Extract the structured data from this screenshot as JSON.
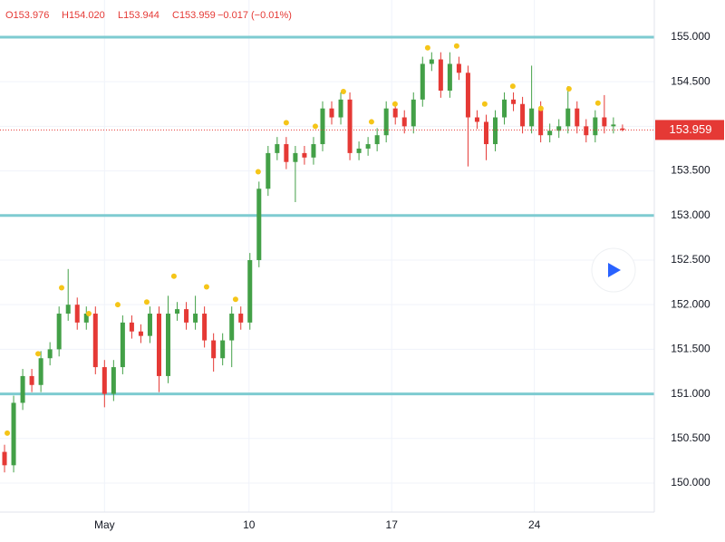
{
  "chart_data": {
    "type": "candlestick",
    "header": [
      "O153.976",
      "H154.020",
      "L153.944",
      "C153.959",
      "−0.017 (−0.01%)"
    ],
    "x": [
      0.5,
      1.5,
      2.5,
      3.5,
      4.5,
      5.5,
      6.5,
      7.5,
      8.5,
      9.5,
      10.5,
      11.5,
      12.5,
      13.5,
      14.5,
      15.5,
      16.5,
      17.5,
      18.5,
      19.5,
      20.5,
      21.5,
      22.5,
      23.5,
      24.5,
      25.5,
      26.5,
      27.5,
      28.5,
      29.5,
      30.5,
      31.5,
      32.5,
      33.5,
      34.5,
      35.5,
      36.5,
      37.5,
      38.5,
      39.5,
      40.5,
      41.5,
      42.5,
      43.5,
      44.5,
      45.5,
      46.5,
      47.5,
      48.5,
      49.5,
      50.5,
      51.5,
      52.5,
      53.5,
      54.5,
      55.5,
      56.5,
      57.5,
      58.5,
      59.5,
      60.5,
      61.5,
      62.5,
      63.5,
      64.5,
      65.5,
      66.5,
      67.5,
      68.5
    ],
    "open": [
      150.35,
      150.2,
      150.9,
      151.2,
      151.1,
      151.4,
      151.5,
      151.9,
      152.0,
      151.8,
      151.9,
      151.3,
      151.0,
      151.3,
      151.8,
      151.7,
      151.65,
      151.9,
      151.2,
      151.9,
      151.95,
      151.8,
      151.9,
      151.6,
      151.4,
      151.6,
      151.9,
      151.8,
      152.5,
      153.3,
      153.7,
      153.8,
      153.6,
      153.7,
      153.65,
      153.8,
      154.2,
      154.1,
      154.3,
      153.7,
      153.75,
      153.8,
      153.9,
      154.2,
      154.1,
      154.0,
      154.3,
      154.7,
      154.75,
      154.4,
      154.7,
      154.6,
      154.1,
      154.05,
      153.8,
      154.1,
      154.3,
      154.25,
      154.0,
      154.2,
      153.9,
      153.95,
      154.0,
      154.2,
      154.0,
      153.9,
      154.1,
      154.0,
      153.976
    ],
    "high": [
      150.43,
      150.98,
      151.28,
      151.28,
      151.48,
      151.58,
      151.98,
      152.4,
      152.08,
      151.98,
      151.98,
      151.38,
      151.38,
      151.88,
      151.88,
      151.78,
      151.98,
      151.98,
      152.1,
      152.03,
      152.03,
      152.1,
      151.98,
      151.68,
      151.68,
      151.98,
      151.98,
      152.58,
      153.38,
      153.78,
      153.88,
      153.88,
      153.78,
      153.78,
      153.88,
      154.28,
      154.28,
      154.38,
      154.38,
      153.83,
      153.88,
      153.98,
      154.28,
      154.28,
      154.18,
      154.38,
      154.78,
      154.83,
      154.83,
      154.83,
      154.78,
      154.68,
      154.18,
      154.13,
      154.18,
      154.38,
      154.38,
      154.33,
      154.68,
      154.28,
      154.03,
      154.08,
      154.45,
      154.28,
      154.08,
      154.18,
      154.35,
      154.1,
      154.02
    ],
    "low": [
      150.12,
      150.12,
      150.82,
      151.02,
      151.02,
      151.32,
      151.42,
      151.82,
      151.72,
      151.72,
      151.22,
      150.85,
      150.92,
      151.22,
      151.62,
      151.57,
      151.57,
      151.02,
      151.12,
      151.82,
      151.72,
      151.72,
      151.52,
      151.25,
      151.32,
      151.3,
      151.72,
      151.72,
      152.42,
      153.22,
      153.62,
      153.52,
      153.15,
      153.57,
      153.57,
      153.72,
      154.02,
      154.02,
      153.62,
      153.62,
      153.67,
      153.72,
      153.82,
      154.02,
      153.92,
      153.92,
      154.22,
      154.62,
      154.32,
      154.32,
      154.52,
      153.55,
      153.97,
      153.62,
      153.72,
      154.02,
      154.17,
      153.92,
      153.92,
      153.82,
      153.82,
      153.87,
      153.92,
      153.92,
      153.82,
      153.82,
      153.92,
      153.92,
      153.944
    ],
    "close": [
      150.2,
      150.9,
      151.2,
      151.1,
      151.4,
      151.5,
      151.9,
      152.0,
      151.8,
      151.9,
      151.3,
      151.0,
      151.3,
      151.8,
      151.7,
      151.65,
      151.9,
      151.2,
      151.9,
      151.95,
      151.8,
      151.9,
      151.6,
      151.4,
      151.6,
      151.9,
      151.8,
      152.5,
      153.3,
      153.7,
      153.8,
      153.6,
      153.7,
      153.65,
      153.8,
      154.2,
      154.1,
      154.3,
      153.7,
      153.75,
      153.8,
      153.9,
      154.2,
      154.1,
      154.0,
      154.3,
      154.7,
      154.75,
      154.4,
      154.7,
      154.6,
      154.1,
      154.05,
      153.8,
      154.1,
      154.3,
      154.25,
      154.0,
      154.2,
      153.9,
      153.95,
      154.0,
      154.2,
      154.0,
      153.9,
      154.1,
      154.0,
      154.02,
      153.959
    ],
    "up_color": "#43a047",
    "down_color": "#e53935",
    "markers": {
      "color": "#f5c518",
      "x": [
        0.8,
        4.19,
        6.78,
        9.77,
        12.96,
        16.15,
        19.14,
        22.73,
        25.92,
        28.41,
        31.5,
        34.7,
        37.79,
        40.88,
        43.47,
        47.06,
        50.25,
        53.34,
        56.43,
        59.52,
        62.61,
        65.8
      ],
      "y": [
        150.56,
        151.45,
        152.19,
        151.9,
        152.0,
        152.03,
        152.32,
        152.2,
        152.06,
        153.49,
        154.04,
        154.0,
        154.39,
        154.05,
        154.25,
        154.88,
        154.9,
        154.25,
        154.45,
        154.2,
        154.42,
        154.26
      ]
    },
    "levels": [
      155,
      153,
      151
    ],
    "level_color": "#7ecbd1",
    "last_price": 153.959,
    "xlim": [
      0,
      72
    ],
    "xticks": [
      {
        "value": 11.5,
        "label": "May"
      },
      {
        "value": 27.4,
        "label": "10"
      },
      {
        "value": 43.1,
        "label": "17"
      },
      {
        "value": 58.8,
        "label": "24"
      }
    ],
    "ylim": [
      149.675,
      155.416
    ],
    "yticks": [
      {
        "value": 150,
        "label": "150.000"
      },
      {
        "value": 150.5,
        "label": "150.500"
      },
      {
        "value": 151,
        "label": "151.000"
      },
      {
        "value": 151.5,
        "label": "151.500"
      },
      {
        "value": 152,
        "label": "152.000"
      },
      {
        "value": 152.5,
        "label": "152.500"
      },
      {
        "value": 153,
        "label": "153.000"
      },
      {
        "value": 153.5,
        "label": "153.500"
      },
      {
        "value": 154,
        "label": "154.000"
      },
      {
        "value": 154.5,
        "label": "154.500"
      },
      {
        "value": 155,
        "label": "155.000"
      }
    ],
    "grid": true
  }
}
